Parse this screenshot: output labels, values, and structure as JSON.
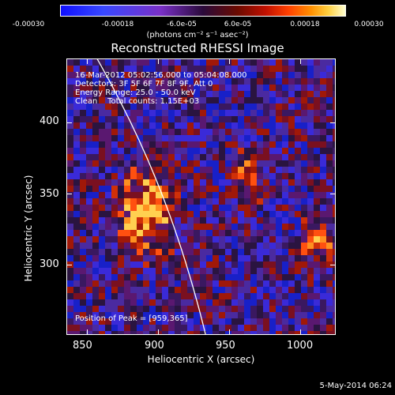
{
  "colorbar": {
    "tick_labels": [
      "-0.00030",
      "-0.00018",
      "-6.0e-05",
      "6.0e-05",
      "0.00018",
      "0.00030"
    ],
    "units": "(photons cm⁻² s⁻¹ asec⁻²)"
  },
  "title": "Reconstructed RHESSI Image",
  "info": {
    "time_range": "16-Mar-2012 05:02:56.000 to 05:04:08.000",
    "detectors": "Detectors: 3F 5F 6F 7F 8F 9F, Att 0",
    "energy": "Energy Range: 25.0 - 50.0 keV",
    "clean": "Clean    Total counts: 1.15E+03",
    "peak": "Position of Peak = [959,365]"
  },
  "axes": {
    "xlabel": "Heliocentric X (arcsec)",
    "ylabel": "Heliocentric Y (arcsec)",
    "xticks": [
      "850",
      "900",
      "950",
      "1000"
    ],
    "yticks": [
      "400",
      "350",
      "300"
    ]
  },
  "footer": {
    "date": "5-May-2014 06:24"
  }
}
